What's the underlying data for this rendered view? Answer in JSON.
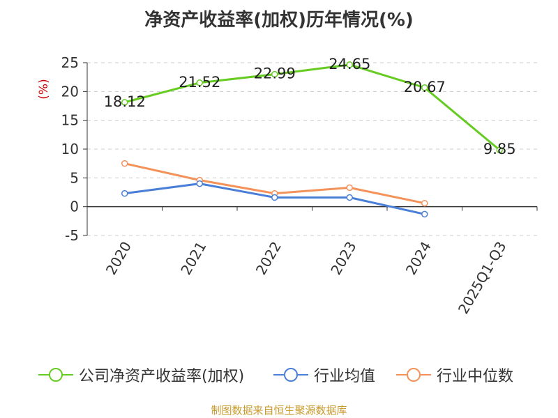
{
  "title": "净资产收益率(加权)历年情况(%)",
  "source": "制图数据来自恒生聚源数据库",
  "colors": {
    "axis": "#333333",
    "grid": "#cccccc",
    "ylabel": "#cc0000",
    "text": "#333333"
  },
  "chart_data": {
    "type": "line",
    "title": "净资产收益率(加权)历年情况(%)",
    "ylabel": "(%)",
    "xlabel": "",
    "ylim": [
      -5,
      25
    ],
    "yticks": [
      25,
      20,
      15,
      10,
      5,
      0,
      -5
    ],
    "grid": true,
    "legend_position": "bottom",
    "categories": [
      "2020",
      "2021",
      "2022",
      "2023",
      "2024",
      "2025Q1-Q3"
    ],
    "series": [
      {
        "name": "公司净资产收益率(加权)",
        "color": "#66cc22",
        "values": [
          18.12,
          21.52,
          22.99,
          24.65,
          20.67,
          9.85
        ],
        "labels": [
          "18.12",
          "21.52",
          "22.99",
          "24.65",
          "20.67",
          "9.85"
        ],
        "show_labels": true
      },
      {
        "name": "行业均值",
        "color": "#4a7fd8",
        "values": [
          2.3,
          4.0,
          1.6,
          1.6,
          -1.3,
          null
        ],
        "show_labels": false
      },
      {
        "name": "行业中位数",
        "color": "#f4925a",
        "values": [
          7.5,
          4.6,
          2.3,
          3.3,
          0.6,
          null
        ],
        "show_labels": false
      }
    ]
  }
}
